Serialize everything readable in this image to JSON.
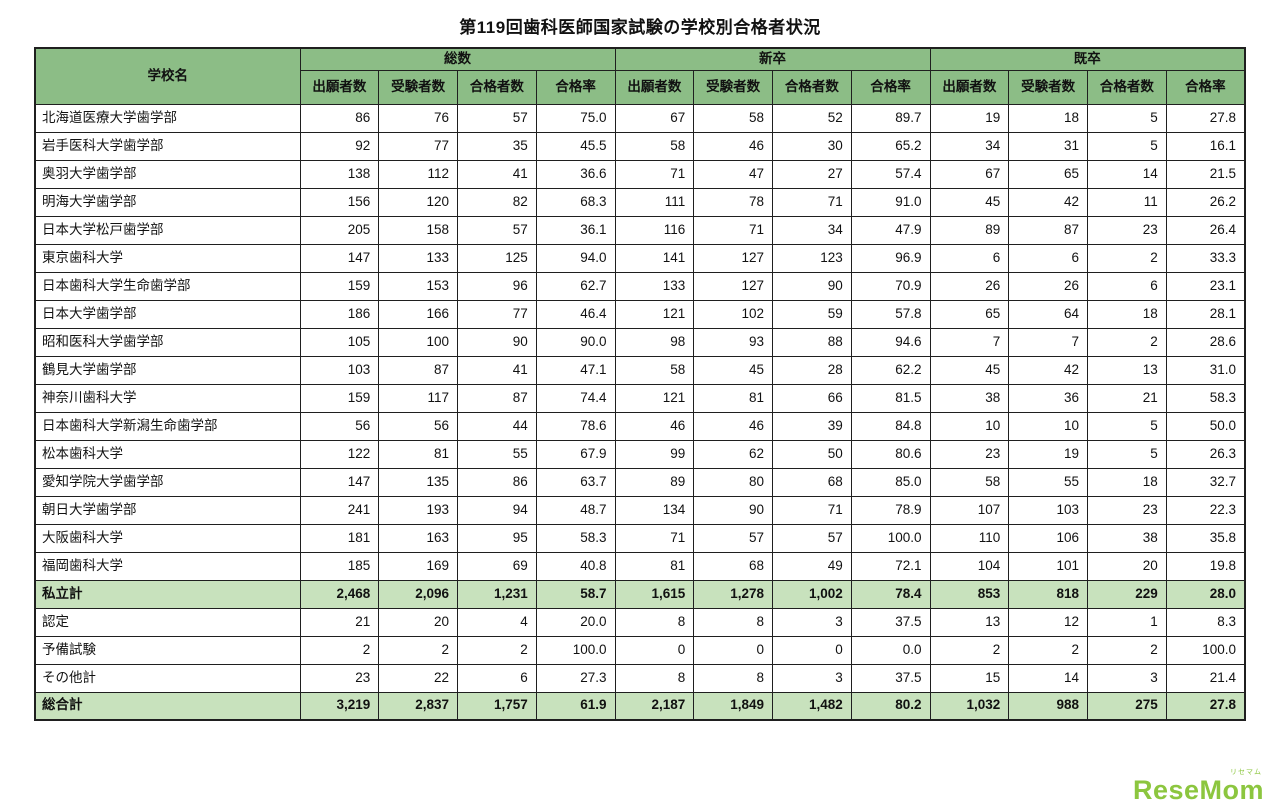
{
  "title": "第119回歯科医師国家試験の学校別合格者状況",
  "colors": {
    "header_bg": "#8cbd86",
    "highlight_bg": "#c8e2bd",
    "border": "#1f1f1f",
    "brand_green": "#8cc63f"
  },
  "table": {
    "corner_label": "学校名",
    "groups": [
      "総数",
      "新卒",
      "既卒"
    ],
    "sub_columns": [
      "出願者数",
      "受験者数",
      "合格者数",
      "合格率"
    ],
    "rows": [
      {
        "school": "北海道医療大学歯学部",
        "highlight": false,
        "values": [
          "86",
          "76",
          "57",
          "75.0",
          "67",
          "58",
          "52",
          "89.7",
          "19",
          "18",
          "5",
          "27.8"
        ]
      },
      {
        "school": "岩手医科大学歯学部",
        "highlight": false,
        "values": [
          "92",
          "77",
          "35",
          "45.5",
          "58",
          "46",
          "30",
          "65.2",
          "34",
          "31",
          "5",
          "16.1"
        ]
      },
      {
        "school": "奥羽大学歯学部",
        "highlight": false,
        "values": [
          "138",
          "112",
          "41",
          "36.6",
          "71",
          "47",
          "27",
          "57.4",
          "67",
          "65",
          "14",
          "21.5"
        ]
      },
      {
        "school": "明海大学歯学部",
        "highlight": false,
        "values": [
          "156",
          "120",
          "82",
          "68.3",
          "111",
          "78",
          "71",
          "91.0",
          "45",
          "42",
          "11",
          "26.2"
        ]
      },
      {
        "school": "日本大学松戸歯学部",
        "highlight": false,
        "values": [
          "205",
          "158",
          "57",
          "36.1",
          "116",
          "71",
          "34",
          "47.9",
          "89",
          "87",
          "23",
          "26.4"
        ]
      },
      {
        "school": "東京歯科大学",
        "highlight": false,
        "values": [
          "147",
          "133",
          "125",
          "94.0",
          "141",
          "127",
          "123",
          "96.9",
          "6",
          "6",
          "2",
          "33.3"
        ]
      },
      {
        "school": "日本歯科大学生命歯学部",
        "highlight": false,
        "values": [
          "159",
          "153",
          "96",
          "62.7",
          "133",
          "127",
          "90",
          "70.9",
          "26",
          "26",
          "6",
          "23.1"
        ]
      },
      {
        "school": "日本大学歯学部",
        "highlight": false,
        "values": [
          "186",
          "166",
          "77",
          "46.4",
          "121",
          "102",
          "59",
          "57.8",
          "65",
          "64",
          "18",
          "28.1"
        ]
      },
      {
        "school": "昭和医科大学歯学部",
        "highlight": false,
        "values": [
          "105",
          "100",
          "90",
          "90.0",
          "98",
          "93",
          "88",
          "94.6",
          "7",
          "7",
          "2",
          "28.6"
        ]
      },
      {
        "school": "鶴見大学歯学部",
        "highlight": false,
        "values": [
          "103",
          "87",
          "41",
          "47.1",
          "58",
          "45",
          "28",
          "62.2",
          "45",
          "42",
          "13",
          "31.0"
        ]
      },
      {
        "school": "神奈川歯科大学",
        "highlight": false,
        "values": [
          "159",
          "117",
          "87",
          "74.4",
          "121",
          "81",
          "66",
          "81.5",
          "38",
          "36",
          "21",
          "58.3"
        ]
      },
      {
        "school": "日本歯科大学新潟生命歯学部",
        "highlight": false,
        "values": [
          "56",
          "56",
          "44",
          "78.6",
          "46",
          "46",
          "39",
          "84.8",
          "10",
          "10",
          "5",
          "50.0"
        ]
      },
      {
        "school": "松本歯科大学",
        "highlight": false,
        "values": [
          "122",
          "81",
          "55",
          "67.9",
          "99",
          "62",
          "50",
          "80.6",
          "23",
          "19",
          "5",
          "26.3"
        ]
      },
      {
        "school": "愛知学院大学歯学部",
        "highlight": false,
        "values": [
          "147",
          "135",
          "86",
          "63.7",
          "89",
          "80",
          "68",
          "85.0",
          "58",
          "55",
          "18",
          "32.7"
        ]
      },
      {
        "school": "朝日大学歯学部",
        "highlight": false,
        "values": [
          "241",
          "193",
          "94",
          "48.7",
          "134",
          "90",
          "71",
          "78.9",
          "107",
          "103",
          "23",
          "22.3"
        ]
      },
      {
        "school": "大阪歯科大学",
        "highlight": false,
        "values": [
          "181",
          "163",
          "95",
          "58.3",
          "71",
          "57",
          "57",
          "100.0",
          "110",
          "106",
          "38",
          "35.8"
        ]
      },
      {
        "school": "福岡歯科大学",
        "highlight": false,
        "values": [
          "185",
          "169",
          "69",
          "40.8",
          "81",
          "68",
          "49",
          "72.1",
          "104",
          "101",
          "20",
          "19.8"
        ]
      },
      {
        "school": "私立計",
        "highlight": true,
        "values": [
          "2,468",
          "2,096",
          "1,231",
          "58.7",
          "1,615",
          "1,278",
          "1,002",
          "78.4",
          "853",
          "818",
          "229",
          "28.0"
        ]
      },
      {
        "school": "認定",
        "highlight": false,
        "values": [
          "21",
          "20",
          "4",
          "20.0",
          "8",
          "8",
          "3",
          "37.5",
          "13",
          "12",
          "1",
          "8.3"
        ]
      },
      {
        "school": "予備試験",
        "highlight": false,
        "values": [
          "2",
          "2",
          "2",
          "100.0",
          "0",
          "0",
          "0",
          "0.0",
          "2",
          "2",
          "2",
          "100.0"
        ]
      },
      {
        "school": "その他計",
        "highlight": false,
        "values": [
          "23",
          "22",
          "6",
          "27.3",
          "8",
          "8",
          "3",
          "37.5",
          "15",
          "14",
          "3",
          "21.4"
        ]
      },
      {
        "school": "総合計",
        "highlight": true,
        "values": [
          "3,219",
          "2,837",
          "1,757",
          "61.9",
          "2,187",
          "1,849",
          "1,482",
          "80.2",
          "1,032",
          "988",
          "275",
          "27.8"
        ]
      }
    ]
  },
  "watermark": {
    "brand": "ReseMom",
    "brand_sub": "リセマム"
  }
}
